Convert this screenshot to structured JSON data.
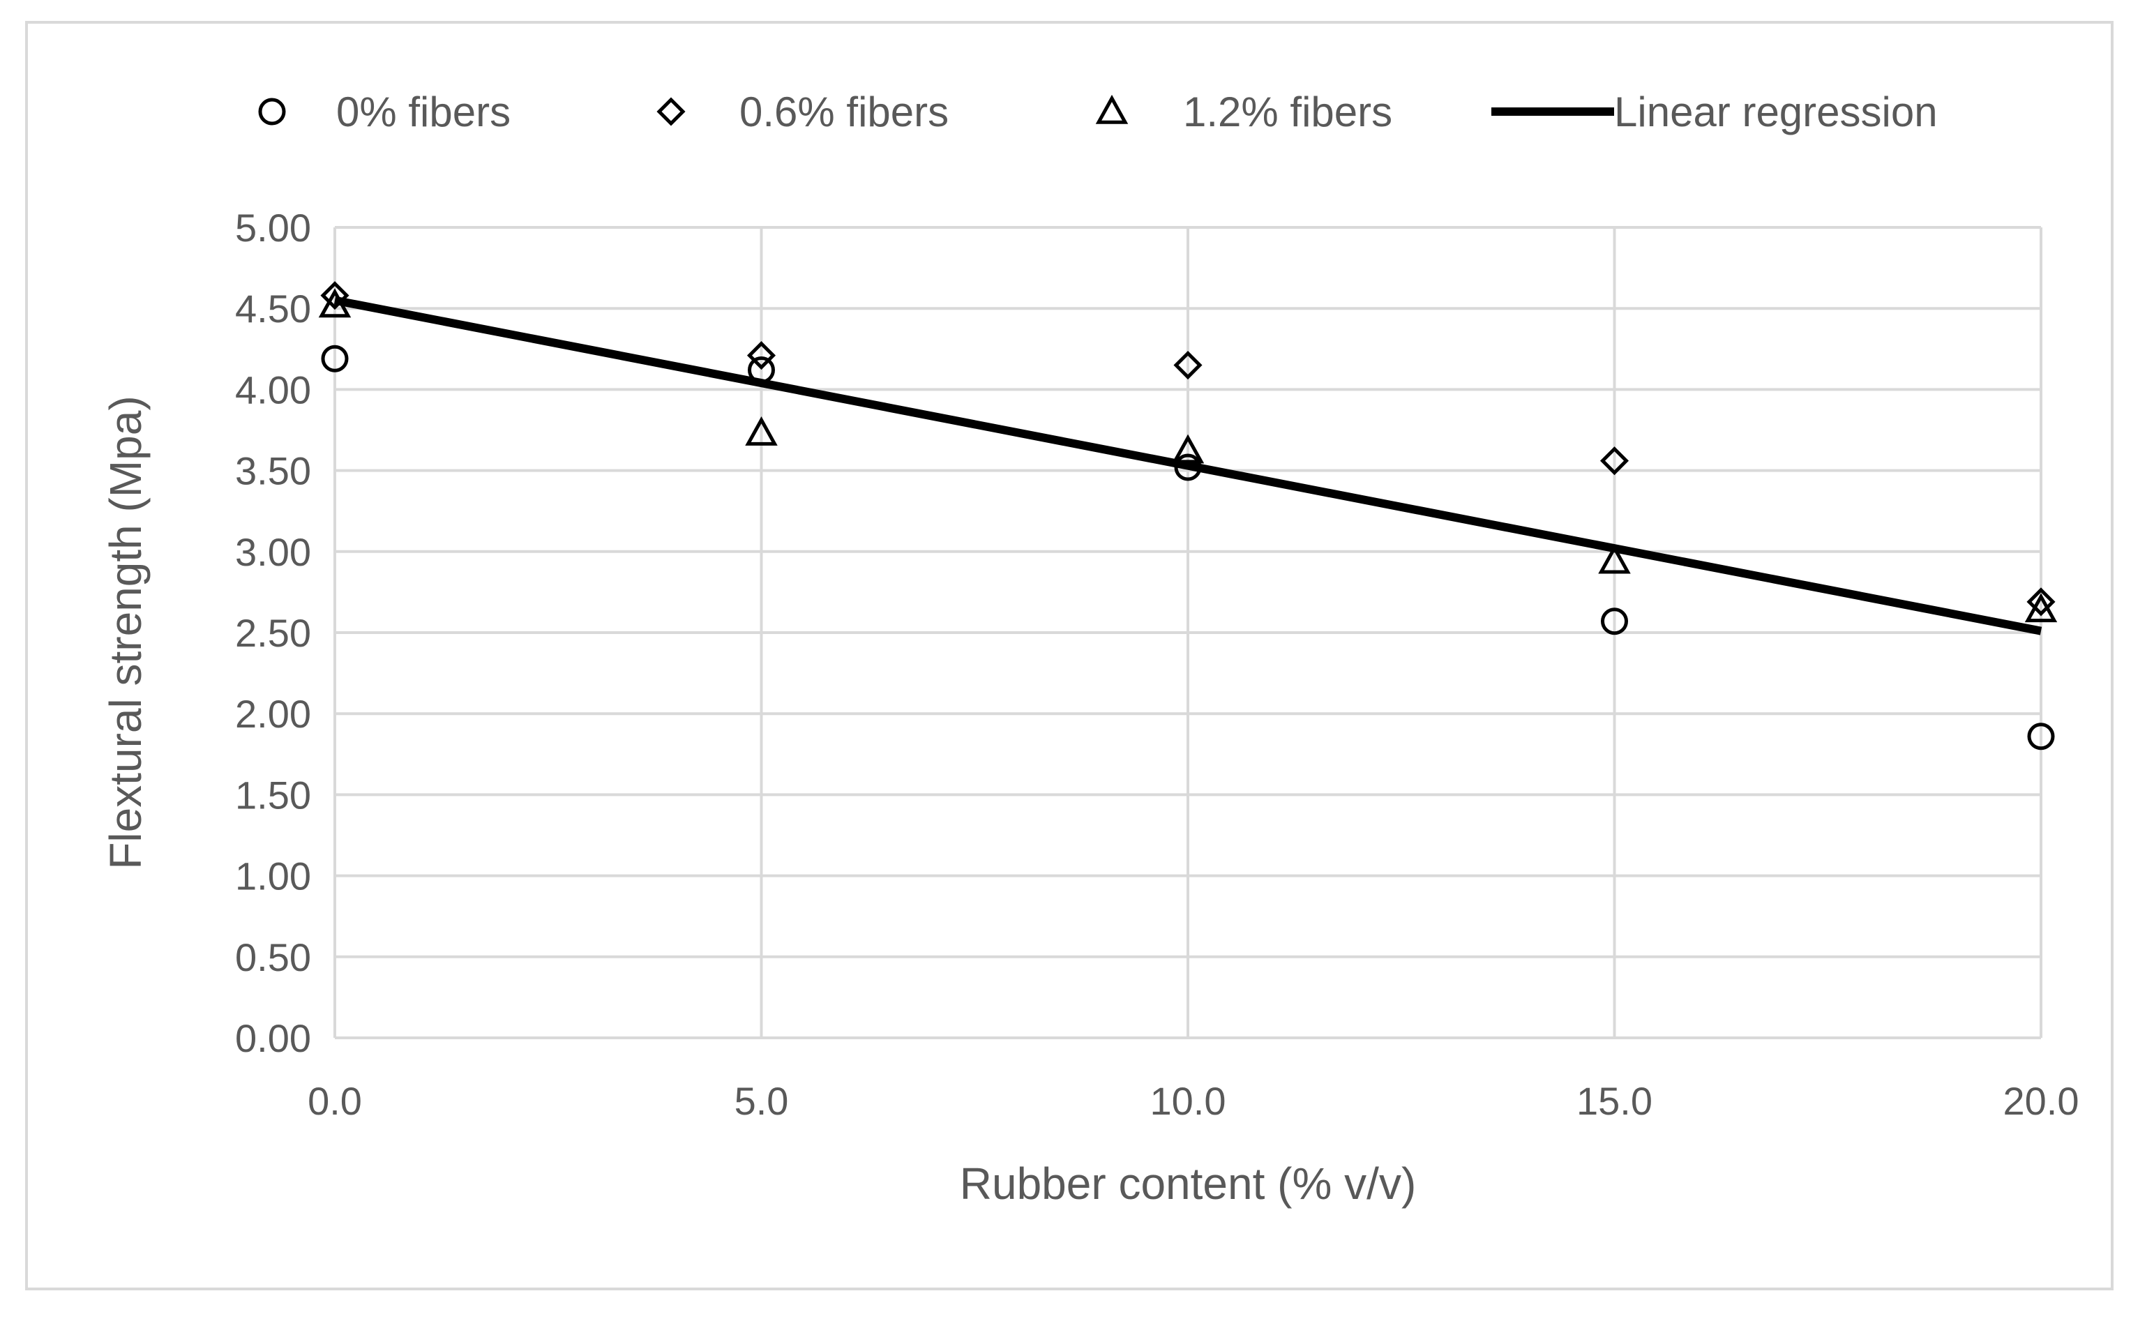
{
  "chart_data": {
    "type": "scatter",
    "title": "",
    "xlabel": "Rubber content (% v/v)",
    "ylabel": "Flextural strength (Mpa)",
    "xlim": [
      0,
      20
    ],
    "ylim": [
      0,
      5
    ],
    "x_ticks": [
      "0.0",
      "5.0",
      "10.0",
      "15.0",
      "20.0"
    ],
    "y_ticks": [
      "0.00",
      "0.50",
      "1.00",
      "1.50",
      "2.00",
      "2.50",
      "3.00",
      "3.50",
      "4.00",
      "4.50",
      "5.00"
    ],
    "grid": true,
    "legend_position": "top",
    "series": [
      {
        "name": "0% fibers",
        "marker": "circle",
        "x": [
          0,
          5,
          10,
          15,
          20
        ],
        "y": [
          4.19,
          4.12,
          3.52,
          2.57,
          1.86
        ]
      },
      {
        "name": "0.6% fibers",
        "marker": "diamond",
        "x": [
          0,
          5,
          10,
          15,
          20
        ],
        "y": [
          4.58,
          4.21,
          4.15,
          3.56,
          2.69
        ]
      },
      {
        "name": "1.2% fibers",
        "marker": "triangle",
        "x": [
          0,
          5,
          10,
          15,
          20
        ],
        "y": [
          4.52,
          3.73,
          3.62,
          2.94,
          2.64
        ]
      },
      {
        "name": "Linear regression",
        "marker": "line",
        "x": [
          0,
          20
        ],
        "y": [
          4.55,
          2.51
        ]
      }
    ],
    "colors": {
      "marker": "#000000",
      "regression": "#000000",
      "grid": "#d9d9d9",
      "text": "#595959"
    }
  }
}
